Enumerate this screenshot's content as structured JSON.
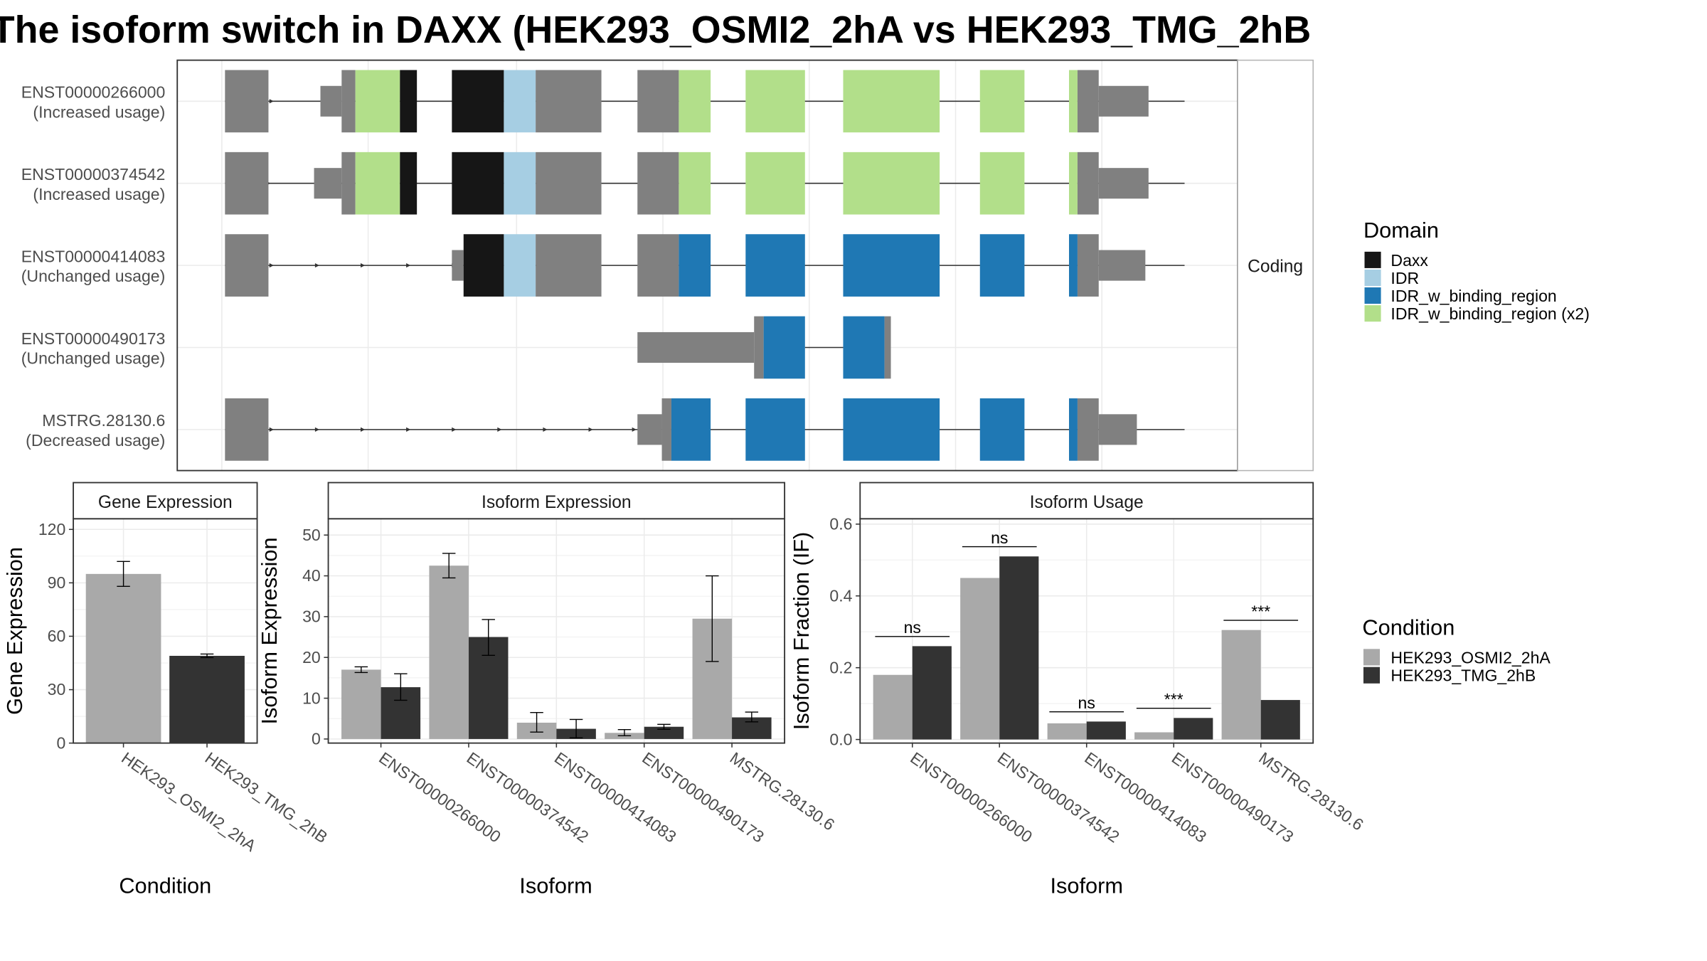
{
  "title": "The isoform switch in DAXX (HEK293_OSMI2_2hA vs HEK293_TMG_2hB",
  "colors": {
    "Daxx": "#161616",
    "IDR": "#a6cee3",
    "IDR_w_binding_region": "#1f78b4",
    "IDR_w_binding_region (x2)": "#b2df8a",
    "noncoding": "#808080",
    "cond1": "#a9a9a9",
    "cond2": "#333333"
  },
  "structure": {
    "strip": "Coding",
    "xlim": [
      0,
      100
    ],
    "isoforms": [
      {
        "id": "ENST00000266000",
        "usage": "(Increased usage)",
        "lines": [
          [
            4.5,
            14.5
          ],
          [
            15.5,
            95
          ]
        ],
        "arrows": [
          9,
          14
        ],
        "blocks": [
          {
            "s": 4.5,
            "e": 8.6,
            "t": "u"
          },
          {
            "s": 13.5,
            "e": 15.5,
            "t": "u",
            "h": "m"
          },
          {
            "s": 15.5,
            "e": 16.8,
            "t": "u"
          },
          {
            "s": 16.8,
            "e": 21,
            "t": "d",
            "d": "IDR_w_binding_region (x2)"
          },
          {
            "s": 21,
            "e": 22.6,
            "t": "d",
            "d": "Daxx"
          },
          {
            "s": 25.9,
            "e": 30.8,
            "t": "d",
            "d": "Daxx"
          },
          {
            "s": 30.8,
            "e": 33.8,
            "t": "d",
            "d": "IDR"
          },
          {
            "s": 33.8,
            "e": 40,
            "t": "u"
          },
          {
            "s": 43.4,
            "e": 47.3,
            "t": "u"
          },
          {
            "s": 47.3,
            "e": 50.3,
            "t": "d",
            "d": "IDR_w_binding_region (x2)"
          },
          {
            "s": 53.6,
            "e": 59.2,
            "t": "d",
            "d": "IDR_w_binding_region (x2)"
          },
          {
            "s": 62.8,
            "e": 71.9,
            "t": "d",
            "d": "IDR_w_binding_region (x2)"
          },
          {
            "s": 75.7,
            "e": 79.9,
            "t": "d",
            "d": "IDR_w_binding_region (x2)"
          },
          {
            "s": 84.1,
            "e": 84.9,
            "t": "d",
            "d": "IDR_w_binding_region (x2)"
          },
          {
            "s": 84.9,
            "e": 86.9,
            "t": "u"
          },
          {
            "s": 86.9,
            "e": 91.6,
            "t": "u",
            "h": "m"
          }
        ]
      },
      {
        "id": "ENST00000374542",
        "usage": "(Increased usage)",
        "lines": [
          [
            4.5,
            14
          ],
          [
            15,
            95
          ]
        ],
        "arrows": [
          8.7,
          13.3
        ],
        "blocks": [
          {
            "s": 4.5,
            "e": 8.6,
            "t": "u"
          },
          {
            "s": 12.9,
            "e": 15.5,
            "t": "u",
            "h": "m"
          },
          {
            "s": 15.5,
            "e": 16.8,
            "t": "u"
          },
          {
            "s": 16.8,
            "e": 21,
            "t": "d",
            "d": "IDR_w_binding_region (x2)"
          },
          {
            "s": 21,
            "e": 22.6,
            "t": "d",
            "d": "Daxx"
          },
          {
            "s": 25.9,
            "e": 30.8,
            "t": "d",
            "d": "Daxx"
          },
          {
            "s": 30.8,
            "e": 33.8,
            "t": "d",
            "d": "IDR"
          },
          {
            "s": 33.8,
            "e": 40,
            "t": "u"
          },
          {
            "s": 43.4,
            "e": 47.3,
            "t": "u"
          },
          {
            "s": 47.3,
            "e": 50.3,
            "t": "d",
            "d": "IDR_w_binding_region (x2)"
          },
          {
            "s": 53.6,
            "e": 59.2,
            "t": "d",
            "d": "IDR_w_binding_region (x2)"
          },
          {
            "s": 62.8,
            "e": 71.9,
            "t": "d",
            "d": "IDR_w_binding_region (x2)"
          },
          {
            "s": 75.7,
            "e": 79.9,
            "t": "d",
            "d": "IDR_w_binding_region (x2)"
          },
          {
            "s": 84.1,
            "e": 84.9,
            "t": "d",
            "d": "IDR_w_binding_region (x2)"
          },
          {
            "s": 84.9,
            "e": 86.9,
            "t": "u"
          },
          {
            "s": 86.9,
            "e": 91.6,
            "t": "u",
            "h": "m"
          }
        ]
      },
      {
        "id": "ENST00000414083",
        "usage": "(Unchanged usage)",
        "lines": [
          [
            4.5,
            95
          ]
        ],
        "arrows": [
          9,
          13.3,
          17.6,
          21.9,
          26.2
        ],
        "blocks": [
          {
            "s": 4.5,
            "e": 8.6,
            "t": "u"
          },
          {
            "s": 25.9,
            "e": 27,
            "t": "u",
            "h": "m"
          },
          {
            "s": 27,
            "e": 30.8,
            "t": "d",
            "d": "Daxx"
          },
          {
            "s": 30.8,
            "e": 33.8,
            "t": "d",
            "d": "IDR"
          },
          {
            "s": 33.8,
            "e": 40,
            "t": "u"
          },
          {
            "s": 43.4,
            "e": 47.3,
            "t": "u"
          },
          {
            "s": 47.3,
            "e": 50.3,
            "t": "d",
            "d": "IDR_w_binding_region"
          },
          {
            "s": 53.6,
            "e": 59.2,
            "t": "d",
            "d": "IDR_w_binding_region"
          },
          {
            "s": 62.8,
            "e": 71.9,
            "t": "d",
            "d": "IDR_w_binding_region"
          },
          {
            "s": 75.7,
            "e": 79.9,
            "t": "d",
            "d": "IDR_w_binding_region"
          },
          {
            "s": 84.1,
            "e": 84.9,
            "t": "d",
            "d": "IDR_w_binding_region"
          },
          {
            "s": 84.9,
            "e": 86.9,
            "t": "u"
          },
          {
            "s": 86.9,
            "e": 91.3,
            "t": "u",
            "h": "m"
          }
        ]
      },
      {
        "id": "ENST00000490173",
        "usage": "(Unchanged usage)",
        "lines": [
          [
            59.2,
            62.8
          ]
        ],
        "arrows": [],
        "blocks": [
          {
            "s": 43.4,
            "e": 54.4,
            "t": "u",
            "h": "m"
          },
          {
            "s": 54.4,
            "e": 55.3,
            "t": "u"
          },
          {
            "s": 55.3,
            "e": 59.2,
            "t": "d",
            "d": "IDR_w_binding_region"
          },
          {
            "s": 62.8,
            "e": 66.7,
            "t": "d",
            "d": "IDR_w_binding_region"
          },
          {
            "s": 66.7,
            "e": 67.3,
            "t": "u"
          }
        ]
      },
      {
        "id": "MSTRG.28130.6",
        "usage": "(Decreased usage)",
        "lines": [
          [
            4.5,
            95
          ]
        ],
        "arrows": [
          9,
          13.3,
          17.6,
          21.9,
          26.2,
          30.5,
          34.8,
          39.1,
          43.2
        ],
        "blocks": [
          {
            "s": 4.5,
            "e": 8.6,
            "t": "u"
          },
          {
            "s": 43.4,
            "e": 45.7,
            "t": "u",
            "h": "m"
          },
          {
            "s": 45.7,
            "e": 46.6,
            "t": "u"
          },
          {
            "s": 46.6,
            "e": 50.3,
            "t": "d",
            "d": "IDR_w_binding_region"
          },
          {
            "s": 53.6,
            "e": 59.2,
            "t": "d",
            "d": "IDR_w_binding_region"
          },
          {
            "s": 62.8,
            "e": 71.9,
            "t": "d",
            "d": "IDR_w_binding_region"
          },
          {
            "s": 75.7,
            "e": 79.9,
            "t": "d",
            "d": "IDR_w_binding_region"
          },
          {
            "s": 84.1,
            "e": 84.9,
            "t": "d",
            "d": "IDR_w_binding_region"
          },
          {
            "s": 84.9,
            "e": 86.9,
            "t": "u"
          },
          {
            "s": 86.9,
            "e": 90.5,
            "t": "u",
            "h": "m"
          }
        ]
      }
    ]
  },
  "chart_data": [
    {
      "type": "bar",
      "strip": "Gene Expression",
      "xlabel": "Condition",
      "ylabel": "Gene Expression",
      "ylim": [
        0,
        126
      ],
      "yticks": [
        0,
        30,
        60,
        90,
        120
      ],
      "categories": [
        "HEK293_OSMI2_2hA",
        "HEK293_TMG_2hB"
      ],
      "series": [
        {
          "values": [
            95,
            49
          ],
          "err_low": [
            88,
            48
          ],
          "err_high": [
            102,
            50
          ],
          "colorKey": "cond1"
        }
      ],
      "barColorsByCategory": [
        "cond1",
        "cond2"
      ]
    },
    {
      "type": "bar",
      "strip": "Isoform Expression",
      "xlabel": "Isoform",
      "ylabel": "Isoform Expression",
      "ylim": [
        -1,
        54
      ],
      "yticks": [
        0,
        10,
        20,
        30,
        40,
        50
      ],
      "categories": [
        "ENST00000266000",
        "ENST00000374542",
        "ENST00000414083",
        "ENST00000490173",
        "MSTRG.28130.6"
      ],
      "series": [
        {
          "name": "HEK293_OSMI2_2hA",
          "values": [
            17,
            42.5,
            4,
            1.5,
            29.5
          ],
          "err_low": [
            16.3,
            39.5,
            1.7,
            0.8,
            19
          ],
          "err_high": [
            17.7,
            45.5,
            6.5,
            2.3,
            40
          ],
          "colorKey": "cond1"
        },
        {
          "name": "HEK293_TMG_2hB",
          "values": [
            12.7,
            25,
            2.5,
            3,
            5.3
          ],
          "err_low": [
            9.5,
            20.5,
            0.3,
            2.4,
            4.2
          ],
          "err_high": [
            16,
            29.3,
            4.8,
            3.6,
            6.6
          ],
          "colorKey": "cond2"
        }
      ]
    },
    {
      "type": "bar",
      "strip": "Isoform Usage",
      "xlabel": "Isoform",
      "ylabel": "Isoform Fraction (IF)",
      "ylim": [
        -0.01,
        0.615
      ],
      "yticks": [
        0.0,
        0.2,
        0.4,
        0.6
      ],
      "categories": [
        "ENST00000266000",
        "ENST00000374542",
        "ENST00000414083",
        "ENST00000490173",
        "MSTRG.28130.6"
      ],
      "series": [
        {
          "name": "HEK293_OSMI2_2hA",
          "values": [
            0.18,
            0.45,
            0.045,
            0.02,
            0.305
          ],
          "colorKey": "cond1"
        },
        {
          "name": "HEK293_TMG_2hB",
          "values": [
            0.26,
            0.51,
            0.05,
            0.06,
            0.11
          ],
          "colorKey": "cond2"
        }
      ],
      "significance": [
        {
          "label": "ns",
          "y": 0.287
        },
        {
          "label": "ns",
          "y": 0.537
        },
        {
          "label": "ns",
          "y": 0.077
        },
        {
          "label": "***",
          "y": 0.087
        },
        {
          "label": "***",
          "y": 0.332
        }
      ]
    }
  ],
  "legends": {
    "domain": {
      "title": "Domain",
      "items": [
        {
          "label": "Daxx",
          "colorKey": "Daxx"
        },
        {
          "label": "IDR",
          "colorKey": "IDR"
        },
        {
          "label": "IDR_w_binding_region",
          "colorKey": "IDR_w_binding_region"
        },
        {
          "label": "IDR_w_binding_region (x2)",
          "colorKey": "IDR_w_binding_region (x2)"
        }
      ]
    },
    "condition": {
      "title": "Condition",
      "items": [
        {
          "label": "HEK293_OSMI2_2hA",
          "colorKey": "cond1"
        },
        {
          "label": "HEK293_TMG_2hB",
          "colorKey": "cond2"
        }
      ]
    }
  }
}
